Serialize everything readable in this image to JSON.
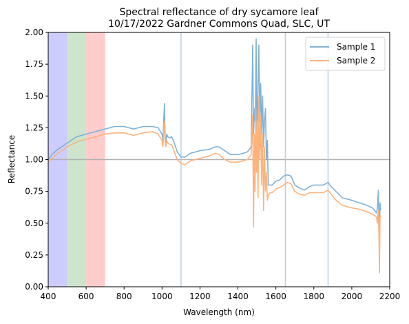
{
  "chart_data": {
    "type": "line",
    "title": [
      "Spectral reflectance of dry sycamore leaf",
      "10/17/2022 Gardner Commons Quad, SLC, UT"
    ],
    "xlabel": "Wavelength (nm)",
    "ylabel": "Reflectance",
    "xlim": [
      400,
      2200
    ],
    "ylim": [
      0,
      2.0
    ],
    "xticks": [
      400,
      600,
      800,
      1000,
      1200,
      1400,
      1600,
      1800,
      2000,
      2200
    ],
    "xtick_labels": [
      "400",
      "600",
      "800",
      "1000",
      "1200",
      "1400",
      "1600",
      "1800",
      "2000",
      "2200"
    ],
    "yticks": [
      0,
      0.25,
      0.5,
      0.75,
      1.0,
      1.25,
      1.5,
      1.75,
      2.0
    ],
    "ytick_labels": [
      "0.00",
      "0.25",
      "0.50",
      "0.75",
      "1.00",
      "1.25",
      "1.50",
      "1.75",
      "2.00"
    ],
    "legend_position": "upper right",
    "bands": [
      {
        "x0": 400,
        "x1": 500,
        "color": "#ccccff"
      },
      {
        "x0": 500,
        "x1": 600,
        "color": "#cce5cc"
      },
      {
        "x0": 600,
        "x1": 700,
        "color": "#ffcccc"
      }
    ],
    "hline": {
      "y": 1.0,
      "color": "#b0b0b0"
    },
    "vlines": [
      {
        "x": 1100,
        "color": "#b7cfe0"
      },
      {
        "x": 1650,
        "color": "#b7cfe0"
      },
      {
        "x": 1875,
        "color": "#b7cfe0"
      }
    ],
    "series": [
      {
        "name": "Sample 1",
        "color": "#7fb1d8",
        "points": [
          [
            400,
            1.0
          ],
          [
            420,
            1.04
          ],
          [
            450,
            1.08
          ],
          [
            500,
            1.13
          ],
          [
            550,
            1.18
          ],
          [
            600,
            1.2
          ],
          [
            650,
            1.22
          ],
          [
            700,
            1.24
          ],
          [
            750,
            1.26
          ],
          [
            800,
            1.26
          ],
          [
            850,
            1.24
          ],
          [
            900,
            1.26
          ],
          [
            950,
            1.26
          ],
          [
            980,
            1.25
          ],
          [
            1000,
            1.2
          ],
          [
            1005,
            1.15
          ],
          [
            1010,
            1.35
          ],
          [
            1013,
            1.44
          ],
          [
            1016,
            1.2
          ],
          [
            1020,
            1.14
          ],
          [
            1025,
            1.2
          ],
          [
            1030,
            1.18
          ],
          [
            1040,
            1.17
          ],
          [
            1050,
            1.18
          ],
          [
            1060,
            1.15
          ],
          [
            1080,
            1.06
          ],
          [
            1100,
            1.02
          ],
          [
            1120,
            1.02
          ],
          [
            1150,
            1.05
          ],
          [
            1200,
            1.07
          ],
          [
            1250,
            1.08
          ],
          [
            1280,
            1.1
          ],
          [
            1300,
            1.1
          ],
          [
            1330,
            1.07
          ],
          [
            1360,
            1.04
          ],
          [
            1400,
            1.04
          ],
          [
            1430,
            1.05
          ],
          [
            1450,
            1.06
          ],
          [
            1460,
            1.08
          ],
          [
            1470,
            1.1
          ],
          [
            1478,
            1.9
          ],
          [
            1482,
            1.2
          ],
          [
            1488,
            1.4
          ],
          [
            1492,
            1.3
          ],
          [
            1496,
            1.95
          ],
          [
            1500,
            1.1
          ],
          [
            1505,
            1.5
          ],
          [
            1510,
            1.9
          ],
          [
            1515,
            1.3
          ],
          [
            1520,
            1.6
          ],
          [
            1525,
            1.2
          ],
          [
            1530,
            1.5
          ],
          [
            1535,
            1.1
          ],
          [
            1540,
            1.3
          ],
          [
            1545,
            1.4
          ],
          [
            1550,
            1.0
          ],
          [
            1555,
            1.15
          ],
          [
            1560,
            0.8
          ],
          [
            1570,
            0.8
          ],
          [
            1580,
            0.8
          ],
          [
            1600,
            0.83
          ],
          [
            1620,
            0.84
          ],
          [
            1640,
            0.87
          ],
          [
            1660,
            0.88
          ],
          [
            1680,
            0.87
          ],
          [
            1700,
            0.8
          ],
          [
            1720,
            0.78
          ],
          [
            1750,
            0.76
          ],
          [
            1780,
            0.79
          ],
          [
            1800,
            0.8
          ],
          [
            1830,
            0.8
          ],
          [
            1850,
            0.8
          ],
          [
            1875,
            0.82
          ],
          [
            1890,
            0.79
          ],
          [
            1910,
            0.76
          ],
          [
            1950,
            0.7
          ],
          [
            2000,
            0.68
          ],
          [
            2040,
            0.66
          ],
          [
            2080,
            0.64
          ],
          [
            2110,
            0.62
          ],
          [
            2130,
            0.58
          ],
          [
            2135,
            0.62
          ],
          [
            2140,
            0.76
          ],
          [
            2143,
            0.5
          ],
          [
            2146,
            0.36
          ],
          [
            2149,
            0.66
          ],
          [
            2152,
            0.6
          ]
        ]
      },
      {
        "name": "Sample 2",
        "color": "#ffb27a",
        "points": [
          [
            400,
            0.98
          ],
          [
            420,
            1.01
          ],
          [
            450,
            1.05
          ],
          [
            500,
            1.1
          ],
          [
            550,
            1.14
          ],
          [
            600,
            1.16
          ],
          [
            650,
            1.18
          ],
          [
            700,
            1.2
          ],
          [
            750,
            1.21
          ],
          [
            800,
            1.21
          ],
          [
            850,
            1.19
          ],
          [
            900,
            1.21
          ],
          [
            950,
            1.22
          ],
          [
            980,
            1.2
          ],
          [
            1000,
            1.15
          ],
          [
            1005,
            1.1
          ],
          [
            1010,
            1.25
          ],
          [
            1013,
            1.3
          ],
          [
            1016,
            1.15
          ],
          [
            1020,
            1.1
          ],
          [
            1025,
            1.15
          ],
          [
            1030,
            1.13
          ],
          [
            1040,
            1.12
          ],
          [
            1050,
            1.12
          ],
          [
            1060,
            1.08
          ],
          [
            1080,
            1.0
          ],
          [
            1100,
            0.97
          ],
          [
            1120,
            0.96
          ],
          [
            1150,
            0.99
          ],
          [
            1200,
            1.01
          ],
          [
            1250,
            1.03
          ],
          [
            1280,
            1.05
          ],
          [
            1300,
            1.04
          ],
          [
            1330,
            1.0
          ],
          [
            1360,
            0.98
          ],
          [
            1400,
            0.98
          ],
          [
            1430,
            0.99
          ],
          [
            1450,
            1.0
          ],
          [
            1460,
            1.02
          ],
          [
            1470,
            1.04
          ],
          [
            1478,
            1.35
          ],
          [
            1482,
            0.47
          ],
          [
            1486,
            1.2
          ],
          [
            1490,
            0.75
          ],
          [
            1494,
            1.4
          ],
          [
            1498,
            0.9
          ],
          [
            1502,
            1.3
          ],
          [
            1506,
            0.7
          ],
          [
            1510,
            1.5
          ],
          [
            1515,
            1.0
          ],
          [
            1520,
            1.35
          ],
          [
            1525,
            0.8
          ],
          [
            1530,
            1.2
          ],
          [
            1535,
            0.6
          ],
          [
            1540,
            1.1
          ],
          [
            1545,
            0.75
          ],
          [
            1550,
            0.9
          ],
          [
            1555,
            0.68
          ],
          [
            1560,
            0.72
          ],
          [
            1570,
            0.74
          ],
          [
            1580,
            0.74
          ],
          [
            1600,
            0.77
          ],
          [
            1620,
            0.78
          ],
          [
            1640,
            0.8
          ],
          [
            1660,
            0.82
          ],
          [
            1680,
            0.81
          ],
          [
            1700,
            0.75
          ],
          [
            1720,
            0.73
          ],
          [
            1750,
            0.72
          ],
          [
            1780,
            0.74
          ],
          [
            1800,
            0.74
          ],
          [
            1830,
            0.74
          ],
          [
            1850,
            0.74
          ],
          [
            1875,
            0.76
          ],
          [
            1890,
            0.73
          ],
          [
            1910,
            0.69
          ],
          [
            1950,
            0.64
          ],
          [
            2000,
            0.62
          ],
          [
            2040,
            0.61
          ],
          [
            2080,
            0.59
          ],
          [
            2110,
            0.57
          ],
          [
            2130,
            0.55
          ],
          [
            2135,
            0.5
          ],
          [
            2140,
            0.6
          ],
          [
            2143,
            0.42
          ],
          [
            2146,
            0.11
          ],
          [
            2149,
            0.55
          ],
          [
            2152,
            0.56
          ]
        ]
      }
    ]
  }
}
